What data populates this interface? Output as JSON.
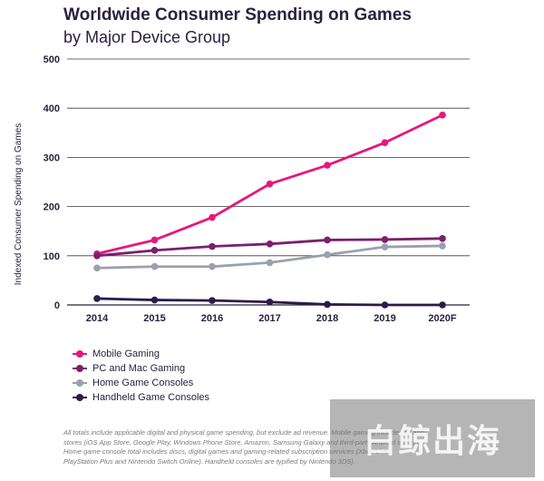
{
  "chart_data": {
    "type": "line",
    "title": "Worldwide Consumer Spending on Games",
    "subtitle": "by Major Device Group",
    "ylabel": "Indexed Consumer Spending on Games",
    "xlabel": "",
    "categories": [
      "2014",
      "2015",
      "2016",
      "2017",
      "2018",
      "2019",
      "2020F"
    ],
    "ylim": [
      0,
      500
    ],
    "yticks": [
      0,
      100,
      200,
      300,
      400,
      500
    ],
    "grid": true,
    "legend_position": "bottom-left",
    "series": [
      {
        "name": "Mobile Gaming",
        "color": "#e5177d",
        "values": [
          104,
          132,
          178,
          246,
          284,
          330,
          386
        ]
      },
      {
        "name": "PC and Mac Gaming",
        "color": "#7b1f6e",
        "values": [
          100,
          111,
          119,
          124,
          132,
          133,
          135
        ]
      },
      {
        "name": "Home Game Consoles",
        "color": "#9aa0ad",
        "values": [
          75,
          78,
          78,
          86,
          102,
          118,
          120
        ]
      },
      {
        "name": "Handheld Game Consoles",
        "color": "#2d1a4a",
        "values": [
          13,
          10,
          9,
          6,
          1,
          0,
          0
        ]
      }
    ]
  },
  "footnote": "All totals include applicable digital and physical game spending, but exclude ad revenue. Mobile gaming includes all app stores (iOS App Store, Google Play, Windows Phone Store, Amazon, Samsung Galaxy and third-party Android stores). Home game console total includes discs, digital games and gaming-related subscription services (Xbox Live, PlayStation Plus and Nintendo Switch Online). Handheld consoles are typified by Nintendo 3DS).",
  "watermark": "白鲸出海"
}
